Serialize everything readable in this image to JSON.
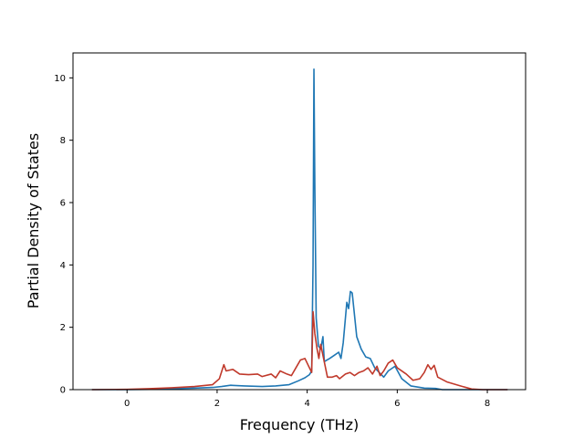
{
  "chart_data": {
    "type": "line",
    "title": "",
    "xlabel": "Frequency (THz)",
    "ylabel": "Partial Density of States",
    "xlim": [
      -1.2,
      8.85
    ],
    "ylim": [
      0,
      10.8
    ],
    "xticks": [
      0,
      2,
      4,
      6,
      8
    ],
    "yticks": [
      0,
      2,
      4,
      6,
      8,
      10
    ],
    "grid": false,
    "legend": "none",
    "series": [
      {
        "color": "#1f77b4",
        "points": [
          [
            -0.78,
            0.0
          ],
          [
            0.0,
            0.0
          ],
          [
            0.5,
            0.01
          ],
          [
            1.0,
            0.03
          ],
          [
            1.5,
            0.05
          ],
          [
            1.9,
            0.07
          ],
          [
            2.1,
            0.1
          ],
          [
            2.3,
            0.14
          ],
          [
            2.6,
            0.12
          ],
          [
            3.0,
            0.1
          ],
          [
            3.3,
            0.12
          ],
          [
            3.6,
            0.16
          ],
          [
            3.8,
            0.28
          ],
          [
            3.95,
            0.38
          ],
          [
            4.05,
            0.48
          ],
          [
            4.1,
            0.6
          ],
          [
            4.13,
            4.0
          ],
          [
            4.15,
            10.28
          ],
          [
            4.17,
            6.5
          ],
          [
            4.2,
            2.3
          ],
          [
            4.25,
            1.4
          ],
          [
            4.3,
            1.3
          ],
          [
            4.35,
            1.7
          ],
          [
            4.38,
            0.9
          ],
          [
            4.5,
            1.0
          ],
          [
            4.6,
            1.1
          ],
          [
            4.7,
            1.2
          ],
          [
            4.75,
            1.0
          ],
          [
            4.8,
            1.5
          ],
          [
            4.88,
            2.8
          ],
          [
            4.92,
            2.6
          ],
          [
            4.96,
            3.15
          ],
          [
            5.0,
            3.1
          ],
          [
            5.05,
            2.4
          ],
          [
            5.1,
            1.7
          ],
          [
            5.2,
            1.3
          ],
          [
            5.3,
            1.05
          ],
          [
            5.4,
            1.0
          ],
          [
            5.5,
            0.7
          ],
          [
            5.6,
            0.55
          ],
          [
            5.7,
            0.4
          ],
          [
            5.8,
            0.6
          ],
          [
            5.95,
            0.75
          ],
          [
            6.1,
            0.35
          ],
          [
            6.3,
            0.12
          ],
          [
            6.6,
            0.05
          ],
          [
            6.85,
            0.04
          ],
          [
            7.0,
            0.0
          ],
          [
            7.6,
            0.0
          ],
          [
            8.45,
            0.0
          ]
        ]
      },
      {
        "color": "#c0392b",
        "points": [
          [
            -0.78,
            0.0
          ],
          [
            0.0,
            0.01
          ],
          [
            0.5,
            0.03
          ],
          [
            1.0,
            0.06
          ],
          [
            1.5,
            0.1
          ],
          [
            1.9,
            0.16
          ],
          [
            2.05,
            0.35
          ],
          [
            2.15,
            0.8
          ],
          [
            2.2,
            0.6
          ],
          [
            2.35,
            0.65
          ],
          [
            2.5,
            0.5
          ],
          [
            2.7,
            0.48
          ],
          [
            2.9,
            0.5
          ],
          [
            3.0,
            0.42
          ],
          [
            3.2,
            0.5
          ],
          [
            3.3,
            0.38
          ],
          [
            3.4,
            0.6
          ],
          [
            3.55,
            0.5
          ],
          [
            3.65,
            0.45
          ],
          [
            3.75,
            0.7
          ],
          [
            3.85,
            0.95
          ],
          [
            3.95,
            1.0
          ],
          [
            4.05,
            0.7
          ],
          [
            4.1,
            0.55
          ],
          [
            4.13,
            2.5
          ],
          [
            4.17,
            1.8
          ],
          [
            4.22,
            1.3
          ],
          [
            4.26,
            1.0
          ],
          [
            4.3,
            1.45
          ],
          [
            4.35,
            1.1
          ],
          [
            4.45,
            0.4
          ],
          [
            4.55,
            0.4
          ],
          [
            4.65,
            0.45
          ],
          [
            4.72,
            0.35
          ],
          [
            4.85,
            0.5
          ],
          [
            4.95,
            0.55
          ],
          [
            5.05,
            0.45
          ],
          [
            5.15,
            0.55
          ],
          [
            5.25,
            0.6
          ],
          [
            5.35,
            0.7
          ],
          [
            5.45,
            0.5
          ],
          [
            5.55,
            0.75
          ],
          [
            5.62,
            0.45
          ],
          [
            5.7,
            0.6
          ],
          [
            5.8,
            0.85
          ],
          [
            5.9,
            0.95
          ],
          [
            6.0,
            0.7
          ],
          [
            6.2,
            0.5
          ],
          [
            6.35,
            0.3
          ],
          [
            6.5,
            0.35
          ],
          [
            6.6,
            0.55
          ],
          [
            6.68,
            0.8
          ],
          [
            6.75,
            0.65
          ],
          [
            6.82,
            0.78
          ],
          [
            6.9,
            0.4
          ],
          [
            7.1,
            0.25
          ],
          [
            7.4,
            0.12
          ],
          [
            7.65,
            0.02
          ],
          [
            7.9,
            0.0
          ],
          [
            8.45,
            0.0
          ]
        ]
      }
    ]
  }
}
